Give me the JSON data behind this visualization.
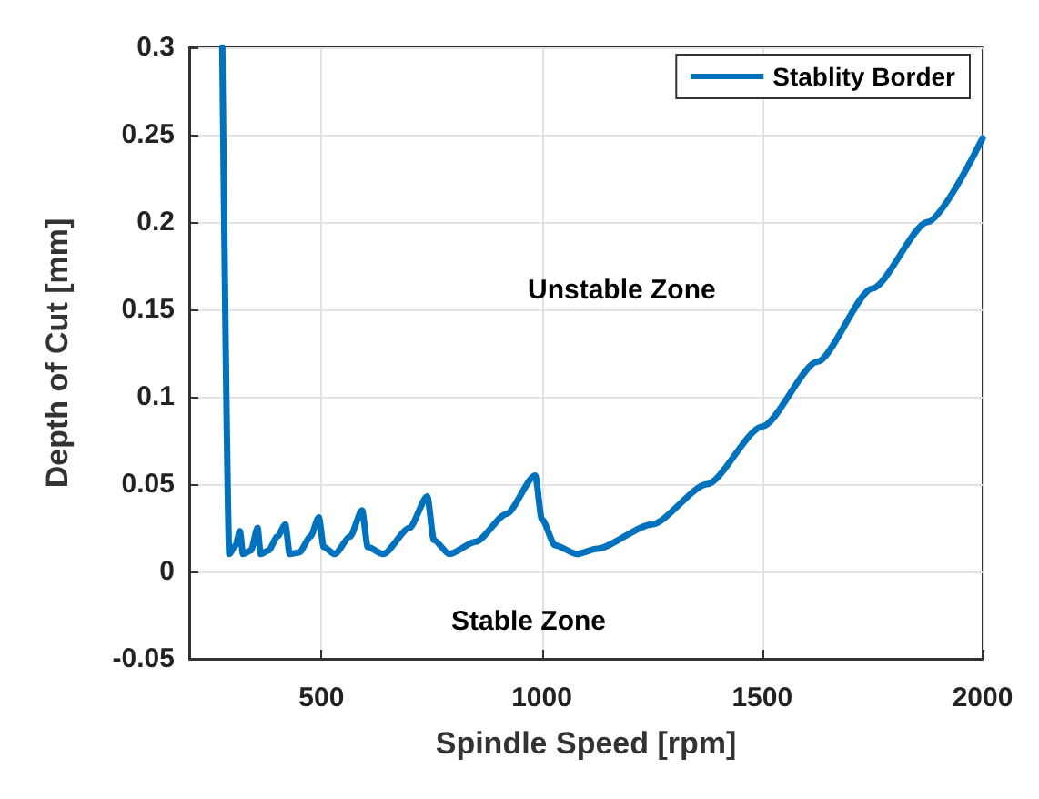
{
  "chart_data": {
    "type": "line",
    "xlabel": "Spindle Speed [rpm]",
    "ylabel": "Depth of Cut [mm]",
    "x": [
      275,
      291,
      305,
      315,
      322,
      340,
      355,
      362,
      380,
      400,
      418,
      428,
      450,
      475,
      494,
      505,
      530,
      565,
      592,
      605,
      640,
      700,
      740,
      755,
      790,
      850,
      920,
      985,
      1000,
      1030,
      1080,
      1125,
      1250,
      1375,
      1500,
      1625,
      1750,
      1875,
      2000
    ],
    "series": [
      {
        "name": "Stablity Border",
        "color": "#0072bd",
        "values": [
          0.3,
          0.01,
          0.015,
          0.023,
          0.01,
          0.012,
          0.025,
          0.01,
          0.012,
          0.02,
          0.027,
          0.01,
          0.011,
          0.02,
          0.031,
          0.014,
          0.01,
          0.02,
          0.035,
          0.014,
          0.01,
          0.025,
          0.043,
          0.018,
          0.01,
          0.017,
          0.033,
          0.055,
          0.03,
          0.015,
          0.01,
          0.013,
          0.027,
          0.05,
          0.083,
          0.12,
          0.162,
          0.2,
          0.248
        ]
      }
    ],
    "xlim": [
      200,
      2000
    ],
    "xticks": [
      500,
      1000,
      1500,
      2000
    ],
    "ylim": [
      -0.05,
      0.3
    ],
    "yticks": [
      -0.05,
      0,
      0.05,
      0.1,
      0.15,
      0.2,
      0.25,
      0.3
    ],
    "annotations": [
      "Unstable Zone",
      "Stable Zone"
    ],
    "grid": true,
    "legend": "top right",
    "marker": "none",
    "line_style": "solid"
  }
}
